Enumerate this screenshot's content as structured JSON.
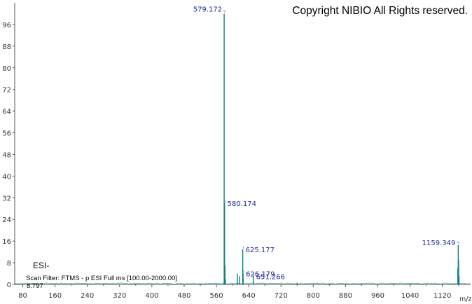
{
  "copyright": "Copyright NIBIO All Rights reserved.",
  "ionization_mode": "ESI-",
  "scan_filter": "Scan Filter: FTMS - p ESI Full ms [100.00-2000.00]",
  "intensity_value": "8.797",
  "x_unit": "m/z",
  "colors": {
    "peak": "#0f7f7f",
    "peak_label": "#1f2a9a",
    "axis": "#555555"
  },
  "chart_data": {
    "type": "line",
    "xlim": [
      60,
      1190
    ],
    "ylim": [
      0,
      104
    ],
    "x_ticks": [
      80,
      160,
      240,
      320,
      400,
      480,
      560,
      640,
      720,
      800,
      880,
      960,
      1040,
      1120
    ],
    "y_ticks": [
      0,
      8,
      16,
      24,
      32,
      40,
      48,
      56,
      64,
      72,
      80,
      88,
      96
    ],
    "peaks": [
      {
        "mz": 579.172,
        "intensity": 100,
        "label": "579.172"
      },
      {
        "mz": 580.174,
        "intensity": 30,
        "label": "580.174"
      },
      {
        "mz": 581.17,
        "intensity": 7
      },
      {
        "mz": 582.17,
        "intensity": 2
      },
      {
        "mz": 612.0,
        "intensity": 4
      },
      {
        "mz": 617.0,
        "intensity": 3
      },
      {
        "mz": 625.177,
        "intensity": 13,
        "label": "625.177"
      },
      {
        "mz": 626.179,
        "intensity": 4,
        "label": "626.179"
      },
      {
        "mz": 651.266,
        "intensity": 3,
        "label": "651.266"
      },
      {
        "mz": 760.0,
        "intensity": 0.6
      },
      {
        "mz": 1040.0,
        "intensity": 0.5
      },
      {
        "mz": 1158.3,
        "intensity": 6
      },
      {
        "mz": 1159.349,
        "intensity": 14.5,
        "label": "1159.349"
      },
      {
        "mz": 1160.35,
        "intensity": 9
      },
      {
        "mz": 1161.35,
        "intensity": 3
      }
    ]
  }
}
